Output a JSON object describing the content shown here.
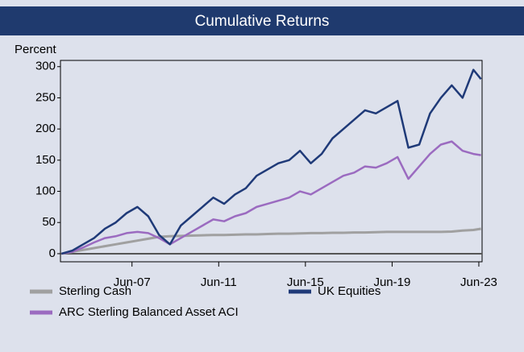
{
  "chart_data": {
    "type": "line",
    "title": "Cumulative Returns",
    "y_label": "Percent",
    "x": [
      2004.25,
      2004.75,
      2005.25,
      2005.75,
      2006.25,
      2006.75,
      2007.25,
      2007.75,
      2008.25,
      2008.75,
      2009.25,
      2009.75,
      2010.25,
      2010.75,
      2011.25,
      2011.75,
      2012.25,
      2012.75,
      2013.25,
      2013.75,
      2014.25,
      2014.75,
      2015.25,
      2015.75,
      2016.25,
      2016.75,
      2017.25,
      2017.75,
      2018.25,
      2018.75,
      2019.25,
      2019.75,
      2020.25,
      2020.75,
      2021.25,
      2021.75,
      2022.25,
      2022.75,
      2023.25,
      2023.6
    ],
    "series": [
      {
        "name": "Sterling Cash",
        "color": "#a0a0a0",
        "values": [
          0,
          3,
          6,
          9,
          12,
          15,
          18,
          21,
          24,
          27,
          28,
          28.5,
          29,
          29.5,
          30,
          30,
          30.5,
          31,
          31,
          31.5,
          32,
          32,
          32.5,
          33,
          33,
          33.5,
          33.5,
          34,
          34,
          34.5,
          35,
          35,
          35,
          35,
          35,
          35,
          35.5,
          37,
          38,
          40
        ]
      },
      {
        "name": "ARC Sterling Balanced Asset ACI",
        "color": "#9b6bc0",
        "values": [
          0,
          3,
          10,
          18,
          25,
          28,
          33,
          35,
          33,
          25,
          15,
          25,
          35,
          45,
          55,
          52,
          60,
          65,
          75,
          80,
          85,
          90,
          100,
          95,
          105,
          115,
          125,
          130,
          140,
          138,
          145,
          155,
          120,
          140,
          160,
          175,
          180,
          165,
          160,
          158
        ]
      },
      {
        "name": "UK Equities",
        "color": "#1f3a78",
        "values": [
          0,
          5,
          15,
          25,
          40,
          50,
          65,
          75,
          60,
          30,
          15,
          45,
          60,
          75,
          90,
          80,
          95,
          105,
          125,
          135,
          145,
          150,
          165,
          145,
          160,
          185,
          200,
          215,
          230,
          225,
          235,
          245,
          170,
          175,
          225,
          250,
          270,
          250,
          295,
          280
        ]
      }
    ],
    "xlim": [
      2004.2,
      2023.65
    ],
    "xticks": [
      {
        "value": 2007.5,
        "label": "Jun-07"
      },
      {
        "value": 2011.5,
        "label": "Jun-11"
      },
      {
        "value": 2015.5,
        "label": "Jun-15"
      },
      {
        "value": 2019.5,
        "label": "Jun-19"
      },
      {
        "value": 2023.5,
        "label": "Jun-23"
      }
    ],
    "ylim": [
      -13,
      310
    ],
    "yticks": [
      0,
      50,
      100,
      150,
      200,
      250,
      300
    ]
  }
}
